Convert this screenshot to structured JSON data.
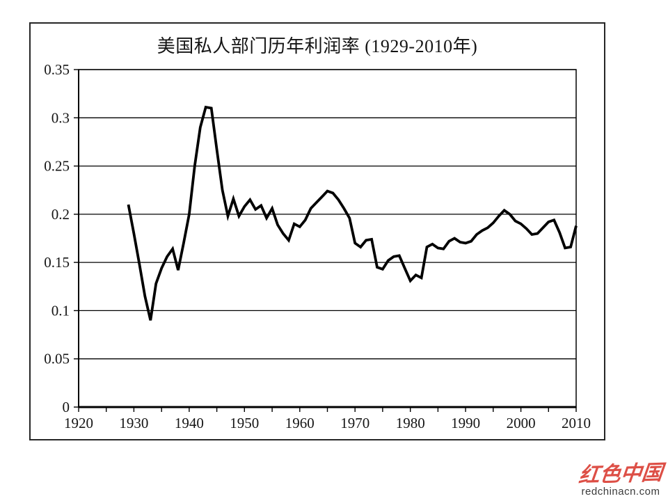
{
  "page": {
    "background": "#ffffff"
  },
  "chart": {
    "title": "美国私人部门历年利润率 (1929-2010年)",
    "line_color": "#000000",
    "grid_color": "#000000",
    "axis_color": "#000000",
    "plot_background": "#ffffff"
  },
  "watermark": {
    "logo_text": "红色中国",
    "url": "redchinacn.com",
    "logo_color": "#dd4f46",
    "url_color": "#3b3b3b"
  },
  "chart_data": {
    "type": "line",
    "title": "美国私人部门历年利润率 (1929-2010年)",
    "xlabel": "",
    "ylabel": "",
    "xlim": [
      1920,
      2010
    ],
    "ylim": [
      0,
      0.35
    ],
    "grid": "horizontal",
    "legend": "none",
    "x_ticks": [
      1920,
      1930,
      1940,
      1950,
      1960,
      1970,
      1980,
      1990,
      2000,
      2010
    ],
    "x_tick_labels": [
      "1920",
      "1930",
      "1940",
      "1950",
      "1960",
      "1970",
      "1980",
      "1990",
      "2000",
      "2010"
    ],
    "x_minor_tick_step": 5,
    "y_ticks": [
      0,
      0.05,
      0.1,
      0.15,
      0.2,
      0.25,
      0.3,
      0.35
    ],
    "y_tick_labels": [
      "0",
      "0.05",
      "0.1",
      "0.15",
      "0.2",
      "0.25",
      "0.3",
      "0.35"
    ],
    "series_name": "利润率",
    "years": [
      1929,
      1930,
      1931,
      1932,
      1933,
      1934,
      1935,
      1936,
      1937,
      1938,
      1939,
      1940,
      1941,
      1942,
      1943,
      1944,
      1945,
      1946,
      1947,
      1948,
      1949,
      1950,
      1951,
      1952,
      1953,
      1954,
      1955,
      1956,
      1957,
      1958,
      1959,
      1960,
      1961,
      1962,
      1963,
      1964,
      1965,
      1966,
      1967,
      1968,
      1969,
      1970,
      1971,
      1972,
      1973,
      1974,
      1975,
      1976,
      1977,
      1978,
      1979,
      1980,
      1981,
      1982,
      1983,
      1984,
      1985,
      1986,
      1987,
      1988,
      1989,
      1990,
      1991,
      1992,
      1993,
      1994,
      1995,
      1996,
      1997,
      1998,
      1999,
      2000,
      2001,
      2002,
      2003,
      2004,
      2005,
      2006,
      2007,
      2008,
      2009,
      2010
    ],
    "values": [
      0.21,
      0.18,
      0.148,
      0.115,
      0.09,
      0.128,
      0.144,
      0.156,
      0.164,
      0.142,
      0.17,
      0.2,
      0.25,
      0.29,
      0.311,
      0.31,
      0.267,
      0.225,
      0.198,
      0.216,
      0.198,
      0.208,
      0.215,
      0.205,
      0.209,
      0.196,
      0.206,
      0.189,
      0.18,
      0.173,
      0.19,
      0.187,
      0.194,
      0.206,
      0.212,
      0.218,
      0.224,
      0.222,
      0.215,
      0.206,
      0.196,
      0.17,
      0.166,
      0.173,
      0.174,
      0.145,
      0.143,
      0.152,
      0.156,
      0.157,
      0.144,
      0.131,
      0.137,
      0.134,
      0.166,
      0.169,
      0.165,
      0.164,
      0.172,
      0.175,
      0.171,
      0.17,
      0.172,
      0.179,
      0.183,
      0.186,
      0.191,
      0.198,
      0.204,
      0.2,
      0.193,
      0.19,
      0.185,
      0.179,
      0.18,
      0.186,
      0.192,
      0.194,
      0.181,
      0.165,
      0.166,
      0.188
    ]
  }
}
